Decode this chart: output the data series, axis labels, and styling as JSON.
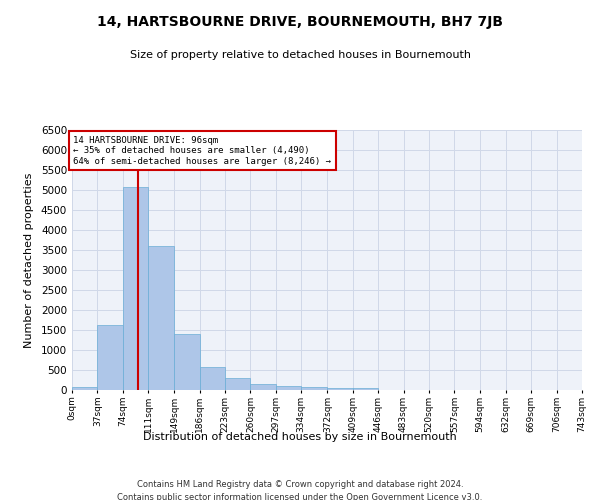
{
  "title": "14, HARTSBOURNE DRIVE, BOURNEMOUTH, BH7 7JB",
  "subtitle": "Size of property relative to detached houses in Bournemouth",
  "xlabel": "Distribution of detached houses by size in Bournemouth",
  "ylabel": "Number of detached properties",
  "footer_line1": "Contains HM Land Registry data © Crown copyright and database right 2024.",
  "footer_line2": "Contains public sector information licensed under the Open Government Licence v3.0.",
  "annotation_line1": "14 HARTSBOURNE DRIVE: 96sqm",
  "annotation_line2": "← 35% of detached houses are smaller (4,490)",
  "annotation_line3": "64% of semi-detached houses are larger (8,246) →",
  "property_size": 96,
  "bin_edges": [
    0,
    37,
    74,
    111,
    149,
    186,
    223,
    260,
    297,
    334,
    372,
    409,
    446,
    483,
    520,
    557,
    594,
    632,
    669,
    706,
    743
  ],
  "bin_labels": [
    "0sqm",
    "37sqm",
    "74sqm",
    "111sqm",
    "149sqm",
    "186sqm",
    "223sqm",
    "260sqm",
    "297sqm",
    "334sqm",
    "372sqm",
    "409sqm",
    "446sqm",
    "483sqm",
    "520sqm",
    "557sqm",
    "594sqm",
    "632sqm",
    "669sqm",
    "706sqm",
    "743sqm"
  ],
  "bar_values": [
    75,
    1630,
    5080,
    3600,
    1410,
    580,
    290,
    150,
    100,
    70,
    55,
    60,
    0,
    0,
    0,
    0,
    0,
    0,
    0,
    0
  ],
  "bar_color": "#aec6e8",
  "bar_edge_color": "#6aaed6",
  "vline_x": 96,
  "vline_color": "#cc0000",
  "annotation_box_color": "#cc0000",
  "grid_color": "#d0d8e8",
  "background_color": "#eef2f9",
  "ylim": [
    0,
    6500
  ],
  "yticks": [
    0,
    500,
    1000,
    1500,
    2000,
    2500,
    3000,
    3500,
    4000,
    4500,
    5000,
    5500,
    6000,
    6500
  ]
}
